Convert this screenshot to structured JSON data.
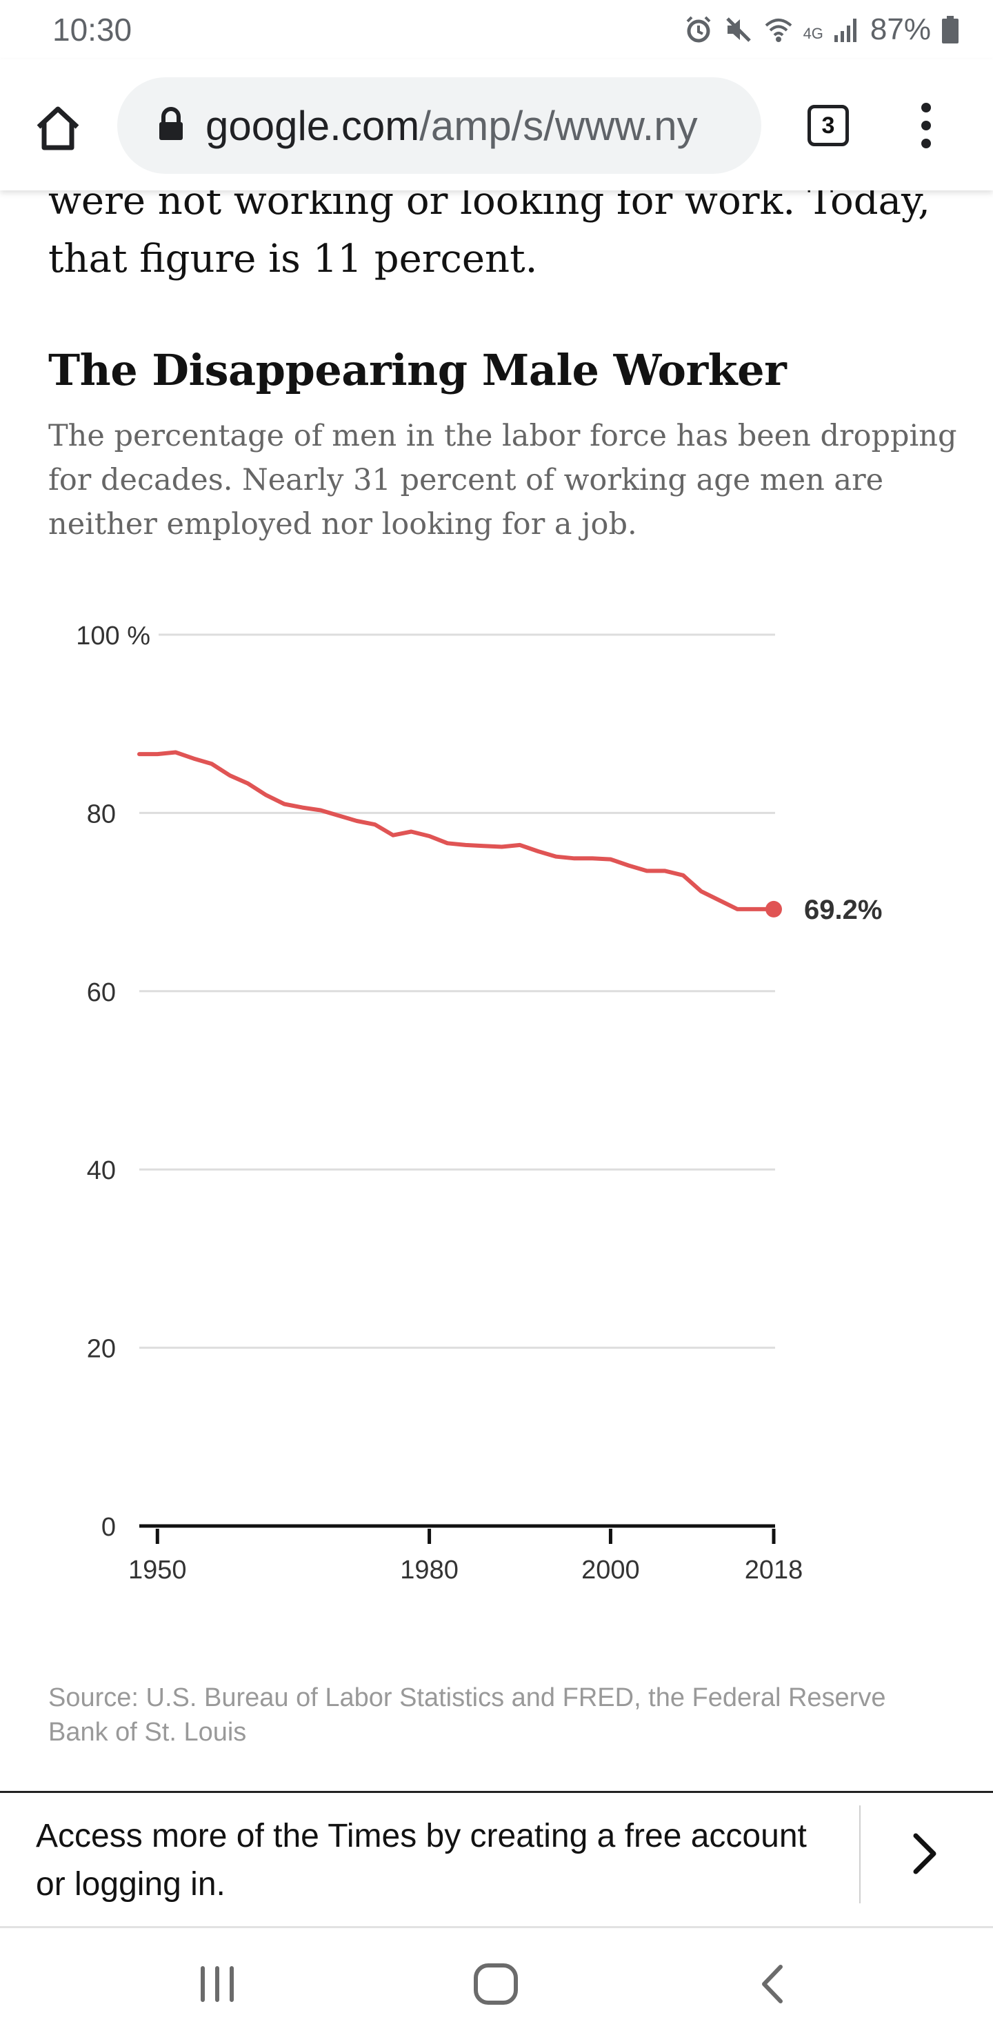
{
  "status_bar": {
    "time": "10:30",
    "network": "4G",
    "battery": "87%",
    "icons": [
      "alarm-icon",
      "mute-icon",
      "wifi-icon",
      "signal-icon",
      "battery-icon"
    ]
  },
  "browser": {
    "url_host": "google.com",
    "url_path": "/amp/s/www.ny",
    "tab_count": "3"
  },
  "article": {
    "tail_text": "were not working or looking for work. Today, that figure is 11 percent."
  },
  "graphic": {
    "title": "The Disappearing Male Worker",
    "subtitle": "The percentage of men in the labor force has been dropping for decades. Nearly 31 percent of working age men are neither employed nor looking for a job.",
    "source": "Source: U.S. Bureau of Labor Statistics and FRED, the Federal Reserve Bank of St. Louis"
  },
  "chart_data": {
    "type": "line",
    "title": "The Disappearing Male Worker",
    "xlabel": "",
    "ylabel": "",
    "ylim": [
      0,
      100
    ],
    "xlim": [
      1948,
      2018
    ],
    "y_ticks": [
      0,
      20,
      40,
      60,
      80,
      100
    ],
    "y_tick_labels": [
      "0",
      "20",
      "40",
      "60",
      "80",
      "100 %"
    ],
    "x_ticks": [
      1950,
      1980,
      2000,
      2018
    ],
    "x_tick_labels": [
      "1950",
      "1980",
      "2000",
      "2018"
    ],
    "grid": true,
    "series_color": "#e05454",
    "end_label": "69.2%",
    "series": [
      {
        "x": [
          1948,
          1950,
          1952,
          1954,
          1956,
          1958,
          1960,
          1962,
          1964,
          1966,
          1968,
          1970,
          1972,
          1974,
          1976,
          1978,
          1980,
          1982,
          1984,
          1986,
          1988,
          1990,
          1992,
          1994,
          1996,
          1998,
          2000,
          2002,
          2004,
          2006,
          2008,
          2010,
          2012,
          2014,
          2016,
          2018
        ],
        "y": [
          86.6,
          86.6,
          86.8,
          86.1,
          85.5,
          84.2,
          83.3,
          82.0,
          81.0,
          80.6,
          80.3,
          79.7,
          79.1,
          78.7,
          77.5,
          77.9,
          77.4,
          76.6,
          76.4,
          76.3,
          76.2,
          76.4,
          75.7,
          75.1,
          74.9,
          74.9,
          74.8,
          74.1,
          73.5,
          73.5,
          73.0,
          71.2,
          70.2,
          69.2,
          69.2,
          69.2
        ]
      }
    ]
  },
  "signup": {
    "text": "Access more of the Times by creating a free account or logging in."
  }
}
